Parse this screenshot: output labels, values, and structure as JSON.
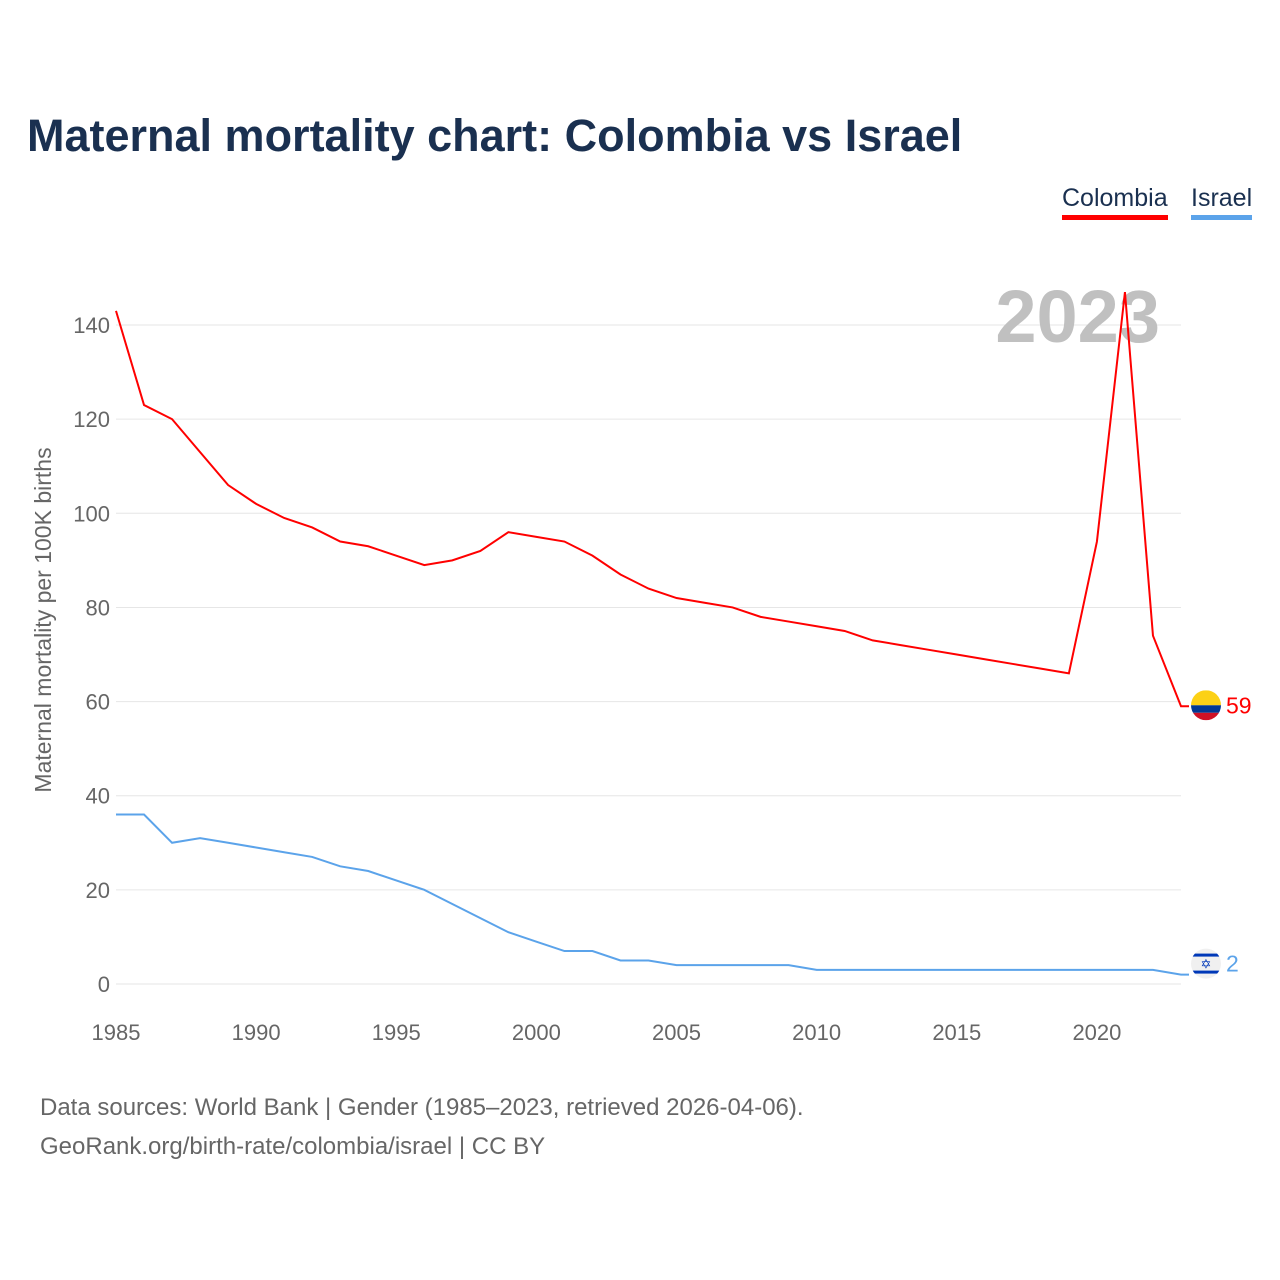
{
  "chart_data": {
    "type": "line",
    "title": "Maternal mortality chart: Colombia vs Israel",
    "ylabel": "Maternal mortality per 100K births",
    "xlabel": "",
    "year_label": "2023",
    "xlim": [
      1985,
      2023
    ],
    "ylim": [
      0,
      150
    ],
    "x_ticks": [
      1985,
      1990,
      1995,
      2000,
      2005,
      2010,
      2015,
      2020
    ],
    "y_ticks": [
      0,
      20,
      40,
      60,
      80,
      100,
      120,
      140
    ],
    "grid": true,
    "legend_placement": "top-right",
    "x": [
      1985,
      1986,
      1987,
      1988,
      1989,
      1990,
      1991,
      1992,
      1993,
      1994,
      1995,
      1996,
      1997,
      1998,
      1999,
      2000,
      2001,
      2002,
      2003,
      2004,
      2005,
      2006,
      2007,
      2008,
      2009,
      2010,
      2011,
      2012,
      2013,
      2014,
      2015,
      2016,
      2017,
      2018,
      2019,
      2020,
      2021,
      2022,
      2023
    ],
    "series": [
      {
        "name": "Colombia",
        "color": "#ff0000",
        "end_label": "59",
        "values": [
          143,
          123,
          120,
          113,
          106,
          102,
          99,
          97,
          94,
          93,
          91,
          89,
          90,
          92,
          96,
          95,
          94,
          91,
          87,
          84,
          82,
          81,
          80,
          78,
          77,
          76,
          75,
          73,
          72,
          71,
          70,
          69,
          68,
          67,
          66,
          94,
          147,
          74,
          59
        ]
      },
      {
        "name": "Israel",
        "color": "#5ba3ea",
        "end_label": "2",
        "values": [
          36,
          36,
          30,
          31,
          30,
          29,
          28,
          27,
          25,
          24,
          22,
          20,
          17,
          14,
          11,
          9,
          7,
          7,
          5,
          5,
          4,
          4,
          4,
          4,
          4,
          3,
          3,
          3,
          3,
          3,
          3,
          3,
          3,
          3,
          3,
          3,
          3,
          3,
          2
        ]
      }
    ]
  },
  "footer": {
    "line1": "Data sources: World Bank | Gender (1985–2023, retrieved 2026-04-06).",
    "line2": "GeoRank.org/birth-rate/colombia/israel | CC BY"
  }
}
